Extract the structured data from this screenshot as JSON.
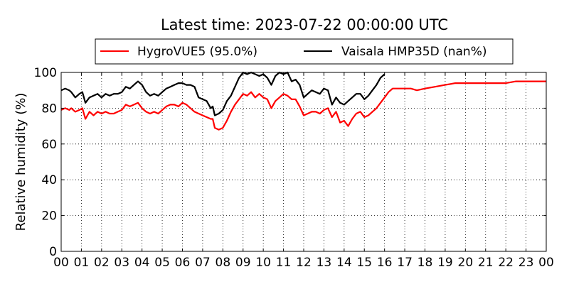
{
  "chart_data": {
    "type": "line",
    "title": "Latest time: 2023-07-22 00:00:00 UTC",
    "xlabel": "",
    "ylabel": "Relative humidity (%)",
    "xlim": [
      0,
      24
    ],
    "ylim": [
      0,
      100
    ],
    "xticks": [
      "00",
      "01",
      "02",
      "03",
      "04",
      "05",
      "06",
      "07",
      "08",
      "09",
      "10",
      "11",
      "12",
      "13",
      "14",
      "15",
      "16",
      "17",
      "18",
      "19",
      "20",
      "21",
      "22",
      "23",
      "00"
    ],
    "yticks": [
      0,
      20,
      40,
      60,
      80,
      100
    ],
    "grid": true,
    "legend_position": "top-center",
    "series": [
      {
        "name": "HygroVUE5 (95.0%)",
        "color": "#ff0000",
        "x": [
          0,
          0.2,
          0.4,
          0.5,
          0.7,
          0.9,
          1.05,
          1.2,
          1.4,
          1.6,
          1.8,
          2.0,
          2.2,
          2.4,
          2.6,
          2.8,
          3.0,
          3.2,
          3.4,
          3.6,
          3.8,
          4.0,
          4.2,
          4.4,
          4.6,
          4.8,
          5.0,
          5.2,
          5.4,
          5.6,
          5.8,
          6.0,
          6.2,
          6.4,
          6.6,
          6.8,
          7.0,
          7.2,
          7.4,
          7.5,
          7.6,
          7.8,
          8.0,
          8.2,
          8.4,
          8.6,
          8.8,
          9.0,
          9.2,
          9.4,
          9.6,
          9.8,
          10.0,
          10.2,
          10.4,
          10.6,
          10.8,
          11.0,
          11.2,
          11.4,
          11.6,
          11.8,
          12.0,
          12.2,
          12.4,
          12.6,
          12.8,
          13.0,
          13.2,
          13.4,
          13.6,
          13.8,
          14.0,
          14.2,
          14.4,
          14.6,
          14.8,
          15.0,
          15.2,
          15.4,
          15.6,
          15.8,
          16.0,
          16.2,
          16.4,
          16.7,
          17.0,
          17.3,
          17.6,
          18.0,
          18.5,
          19.0,
          19.5,
          20.0,
          20.5,
          21.0,
          21.5,
          22.0,
          22.5,
          23.0,
          23.5,
          24.0
        ],
        "values": [
          79,
          80,
          79,
          80,
          78,
          79,
          80,
          74,
          78,
          76,
          78,
          77,
          78,
          77,
          77,
          78,
          79,
          82,
          81,
          82,
          83,
          80,
          78,
          77,
          78,
          77,
          79,
          81,
          82,
          82,
          81,
          83,
          82,
          80,
          78,
          77,
          76,
          75,
          74,
          74,
          69,
          68,
          69,
          73,
          78,
          82,
          85,
          88,
          87,
          89,
          86,
          88,
          86,
          85,
          80,
          84,
          86,
          88,
          87,
          85,
          85,
          81,
          76,
          77,
          78,
          78,
          77,
          79,
          80,
          75,
          78,
          72,
          73,
          70,
          74,
          77,
          78,
          75,
          76,
          78,
          80,
          83,
          86,
          89,
          91,
          91,
          91,
          91,
          90,
          91,
          92,
          93,
          94,
          94,
          94,
          94,
          94,
          94,
          95,
          95,
          95,
          95
        ]
      },
      {
        "name": "Vaisala HMP35D (nan%)",
        "color": "#000000",
        "x": [
          0,
          0.2,
          0.4,
          0.5,
          0.7,
          0.9,
          1.05,
          1.2,
          1.4,
          1.6,
          1.8,
          2.0,
          2.2,
          2.4,
          2.6,
          2.8,
          3.0,
          3.2,
          3.4,
          3.6,
          3.8,
          4.0,
          4.2,
          4.4,
          4.6,
          4.8,
          5.0,
          5.2,
          5.4,
          5.6,
          5.8,
          6.0,
          6.2,
          6.4,
          6.6,
          6.8,
          7.0,
          7.2,
          7.4,
          7.5,
          7.6,
          7.8,
          8.0,
          8.2,
          8.4,
          8.6,
          8.8,
          9.0,
          9.2,
          9.4,
          9.6,
          9.8,
          10.0,
          10.2,
          10.4,
          10.6,
          10.8,
          11.0,
          11.2,
          11.4,
          11.6,
          11.8,
          12.0,
          12.2,
          12.4,
          12.6,
          12.8,
          13.0,
          13.2,
          13.4,
          13.6,
          13.8,
          14.0,
          14.2,
          14.4,
          14.6,
          14.8,
          15.0,
          15.2,
          15.4,
          15.6,
          15.8,
          16.0
        ],
        "values": [
          90,
          91,
          90,
          89,
          86,
          88,
          89,
          83,
          86,
          87,
          88,
          86,
          88,
          87,
          88,
          88,
          89,
          92,
          91,
          93,
          95,
          93,
          89,
          87,
          88,
          87,
          89,
          91,
          92,
          93,
          94,
          94,
          93,
          93,
          92,
          86,
          85,
          84,
          80,
          81,
          76,
          77,
          79,
          84,
          87,
          92,
          97,
          100,
          99,
          100,
          99,
          98,
          99,
          97,
          93,
          98,
          100,
          99,
          100,
          95,
          96,
          93,
          86,
          88,
          90,
          89,
          88,
          91,
          90,
          82,
          86,
          83,
          82,
          84,
          86,
          88,
          88,
          85,
          87,
          90,
          93,
          97,
          99
        ]
      }
    ]
  }
}
